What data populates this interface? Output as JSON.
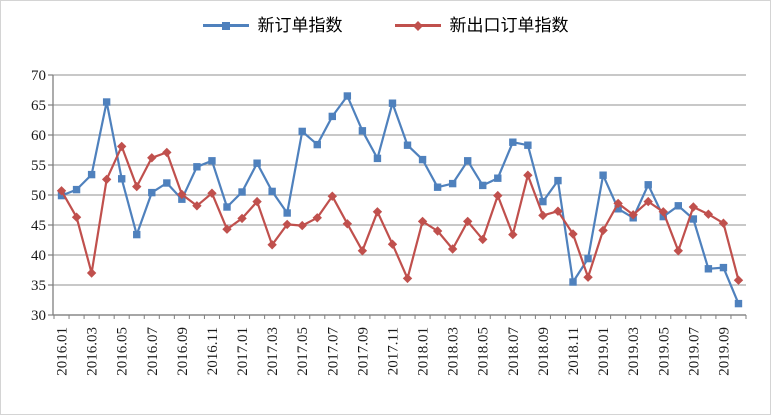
{
  "chart_data": {
    "type": "line",
    "title": "",
    "xlabel": "",
    "ylabel": "",
    "ylim": [
      30,
      70
    ],
    "y_step": 5,
    "grid": true,
    "legend_position": "top-center",
    "categories": [
      "2016.01",
      "2016.02",
      "2016.03",
      "2016.04",
      "2016.05",
      "2016.06",
      "2016.07",
      "2016.08",
      "2016.09",
      "2016.10",
      "2016.11",
      "2016.12",
      "2017.01",
      "2017.02",
      "2017.03",
      "2017.04",
      "2017.05",
      "2017.06",
      "2017.07",
      "2017.08",
      "2017.09",
      "2017.10",
      "2017.11",
      "2017.12",
      "2018.01",
      "2018.02",
      "2018.03",
      "2018.04",
      "2018.05",
      "2018.06",
      "2018.07",
      "2018.08",
      "2018.09",
      "2018.10",
      "2018.11",
      "2018.12",
      "2019.01",
      "2019.02",
      "2019.03",
      "2019.04",
      "2019.05",
      "2019.06",
      "2019.07",
      "2019.08",
      "2019.09",
      "2019.10"
    ],
    "x_labels_shown": [
      "2016.01",
      "2016.03",
      "2016.05",
      "2016.07",
      "2016.09",
      "2016.11",
      "2017.01",
      "2017.03",
      "2017.05",
      "2017.07",
      "2017.09",
      "2017.11",
      "2018.01",
      "2018.03",
      "2018.05",
      "2018.07",
      "2018.09",
      "2018.11",
      "2019.01",
      "2019.03",
      "2019.05",
      "2019.07",
      "2019.09"
    ],
    "y_tick_labels": [
      "70",
      "65",
      "60",
      "55",
      "50",
      "45",
      "40",
      "35",
      "30"
    ],
    "series": [
      {
        "name": "新订单指数",
        "marker": "square",
        "color": "#4F81BD",
        "values": [
          49.9,
          50.9,
          53.4,
          65.5,
          52.7,
          43.4,
          50.4,
          52.0,
          49.3,
          54.7,
          55.7,
          48.0,
          50.5,
          55.3,
          50.6,
          47.0,
          60.6,
          58.4,
          63.1,
          66.5,
          60.7,
          56.1,
          65.3,
          58.3,
          55.9,
          51.3,
          51.9,
          55.7,
          51.6,
          52.8,
          58.8,
          58.3,
          48.9,
          52.4,
          35.5,
          39.4,
          53.3,
          47.7,
          46.2,
          51.7,
          46.4,
          48.2,
          46.0,
          37.7,
          37.9,
          31.9
        ]
      },
      {
        "name": "新出口订单指数",
        "marker": "diamond",
        "color": "#C0504D",
        "values": [
          50.7,
          46.3,
          37.0,
          52.6,
          58.1,
          51.4,
          56.2,
          57.1,
          50.1,
          48.2,
          50.3,
          44.3,
          46.1,
          48.9,
          41.7,
          45.1,
          44.9,
          46.2,
          49.8,
          45.2,
          40.7,
          47.2,
          41.8,
          36.1,
          45.6,
          44.0,
          41.0,
          45.6,
          42.6,
          49.9,
          43.4,
          53.3,
          46.6,
          47.3,
          43.5,
          36.3,
          44.1,
          48.6,
          46.7,
          48.9,
          47.2,
          40.7,
          48.0,
          46.8,
          45.3,
          35.8
        ]
      }
    ],
    "colors": {
      "gridline": "#A6A6A6",
      "axis": "#7F7F7F",
      "tick_text": "#1a1a1a"
    }
  }
}
